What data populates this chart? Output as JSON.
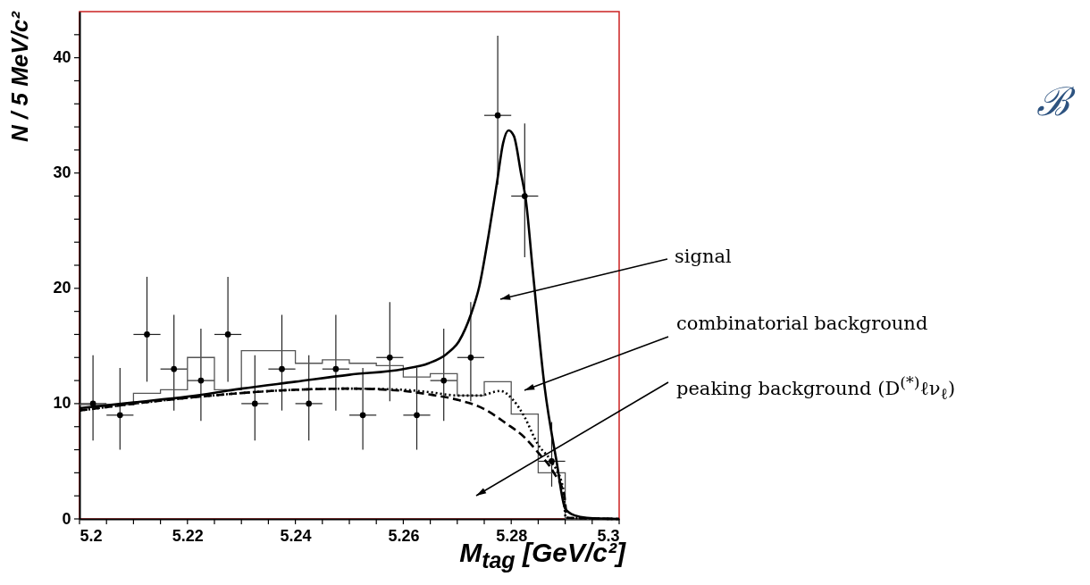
{
  "chart_data": {
    "type": "scatter",
    "xlabel": "M$_{tag}$ [GeV/c²]",
    "ylabel": "N / 5 MeV/c²",
    "xlim": [
      5.2,
      5.3
    ],
    "xticks": [
      5.2,
      {
        "value": 5.205,
        "label": null
      },
      {
        "value": 5.21,
        "label": null
      },
      {
        "value": 5.215,
        "label": null
      },
      5.22,
      {
        "value": 5.225,
        "label": null
      },
      {
        "value": 5.23,
        "label": null
      },
      {
        "value": 5.235,
        "label": null
      },
      5.24,
      {
        "value": 5.245,
        "label": null
      },
      {
        "value": 5.25,
        "label": null
      },
      {
        "value": 5.255,
        "label": null
      },
      5.26,
      {
        "value": 5.265,
        "label": null
      },
      {
        "value": 5.27,
        "label": null
      },
      {
        "value": 5.275,
        "label": null
      },
      5.28,
      {
        "value": 5.285,
        "label": null
      },
      {
        "value": 5.29,
        "label": null
      },
      {
        "value": 5.295,
        "label": null
      },
      5.3
    ],
    "ylim": [
      0,
      44
    ],
    "yticks": [
      0,
      {
        "value": 2,
        "label": null
      },
      {
        "value": 4,
        "label": null
      },
      {
        "value": 6,
        "label": null
      },
      {
        "value": 8,
        "label": null
      },
      10,
      {
        "value": 12,
        "label": null
      },
      {
        "value": 14,
        "label": null
      },
      {
        "value": 16,
        "label": null
      },
      {
        "value": 18,
        "label": null
      },
      20,
      {
        "value": 22,
        "label": null
      },
      {
        "value": 24,
        "label": null
      },
      {
        "value": 26,
        "label": null
      },
      {
        "value": 28,
        "label": null
      },
      30,
      {
        "value": 32,
        "label": null
      },
      {
        "value": 34,
        "label": null
      },
      {
        "value": 36,
        "label": null
      },
      {
        "value": 38,
        "label": null
      },
      40,
      {
        "value": 42,
        "label": null
      }
    ],
    "annotations": [
      "signal",
      "combinatorial background",
      "peaking background (D$^{(*)}$ℓν$_{ℓ}$)",
      "ℬ"
    ],
    "series": [
      {
        "color": "#000000",
        "marker": "circle",
        "x": [
          5.2025,
          5.2075,
          5.2125,
          5.2175,
          5.2225,
          5.2275,
          5.2325,
          5.2375,
          5.2425,
          5.2475,
          5.2525,
          5.2575,
          5.2625,
          5.2675,
          5.2725,
          5.2775,
          5.2825,
          5.2875
        ],
        "values": [
          10,
          9,
          16,
          13,
          12,
          16,
          10,
          13,
          10,
          13,
          9,
          14,
          9,
          12,
          14,
          35,
          28,
          5
        ],
        "errors": [
          [
            6.8,
            14.2
          ],
          [
            6.0,
            13.1
          ],
          [
            11.9,
            21.0
          ],
          [
            9.4,
            17.7
          ],
          [
            8.5,
            16.5
          ],
          [
            11.9,
            21.0
          ],
          [
            6.8,
            14.2
          ],
          [
            9.4,
            17.7
          ],
          [
            6.8,
            14.2
          ],
          [
            9.4,
            17.7
          ],
          [
            6.0,
            13.1
          ],
          [
            10.2,
            18.8
          ],
          [
            6.0,
            13.1
          ],
          [
            8.5,
            16.5
          ],
          [
            10.2,
            18.8
          ],
          [
            29.0,
            41.9
          ],
          [
            22.7,
            34.3
          ],
          [
            2.8,
            8.4
          ]
        ],
        "xerrors": [
          0.0025,
          0.0025,
          0.0025,
          0.0025,
          0.0025,
          0.0025,
          0.0025,
          0.0025,
          0.0025,
          0.0025,
          0.0025,
          0.0025,
          0.0025,
          0.0025,
          0.0025,
          0.0025,
          0.0025,
          0.0025
        ]
      },
      {
        "type": "histogram",
        "color": "#555555",
        "bins": [
          5.2,
          5.205,
          5.21,
          5.215,
          5.22,
          5.225,
          5.23,
          5.235,
          5.24,
          5.245,
          5.25,
          5.255,
          5.26,
          5.265,
          5.27,
          5.275,
          5.28,
          5.285,
          5.29,
          5.295,
          5.3
        ],
        "values": [
          9.9,
          9.9,
          10.9,
          11.2,
          14.0,
          11.2,
          14.6,
          14.6,
          13.5,
          13.8,
          13.5,
          13.3,
          12.3,
          12.6,
          10.7,
          11.9,
          9.1,
          4.0,
          0,
          0
        ]
      },
      {
        "type": "line",
        "color": "#000000",
        "line_style": "solid",
        "x": [
          5.2,
          5.21,
          5.22,
          5.23,
          5.24,
          5.25,
          5.26,
          5.2647,
          5.268,
          5.2703,
          5.2725,
          5.2741,
          5.2758,
          5.2774,
          5.2785,
          5.2795,
          5.2805,
          5.2818,
          5.2827,
          5.284,
          5.2862,
          5.2884,
          5.29,
          5.2918,
          5.294,
          5.3
        ],
        "values": [
          9.6,
          10.1,
          10.6,
          11.3,
          11.9,
          12.5,
          13.0,
          13.5,
          14.3,
          15.4,
          17.7,
          20.2,
          24.6,
          29.3,
          32.6,
          33.7,
          33.2,
          30.0,
          27.7,
          21.5,
          11.4,
          5.0,
          0.9,
          0.3,
          0.1,
          0
        ]
      },
      {
        "type": "line",
        "color": "#000000",
        "line_style": "dotted",
        "x": [
          5.2,
          5.22,
          5.24,
          5.25,
          5.26,
          5.2647,
          5.2703,
          5.2741,
          5.278,
          5.2802,
          5.2824,
          5.2849,
          5.2874,
          5.2896,
          5.2901,
          5.3
        ],
        "values": [
          9.4,
          10.5,
          11.2,
          11.3,
          11.2,
          11.0,
          10.7,
          10.7,
          11.1,
          10.4,
          8.9,
          6.5,
          5.0,
          2.7,
          0.1,
          0
        ]
      },
      {
        "type": "line",
        "color": "#000000",
        "line_style": "dashed",
        "x": [
          5.2,
          5.22,
          5.24,
          5.25,
          5.26,
          5.2647,
          5.2703,
          5.2747,
          5.279,
          5.2824,
          5.2849,
          5.2879,
          5.2898,
          5.2904,
          5.3
        ],
        "values": [
          9.4,
          10.5,
          11.2,
          11.3,
          11.1,
          10.8,
          10.3,
          9.6,
          8.3,
          7.1,
          5.8,
          4.0,
          2.1,
          0.1,
          0
        ]
      }
    ]
  }
}
